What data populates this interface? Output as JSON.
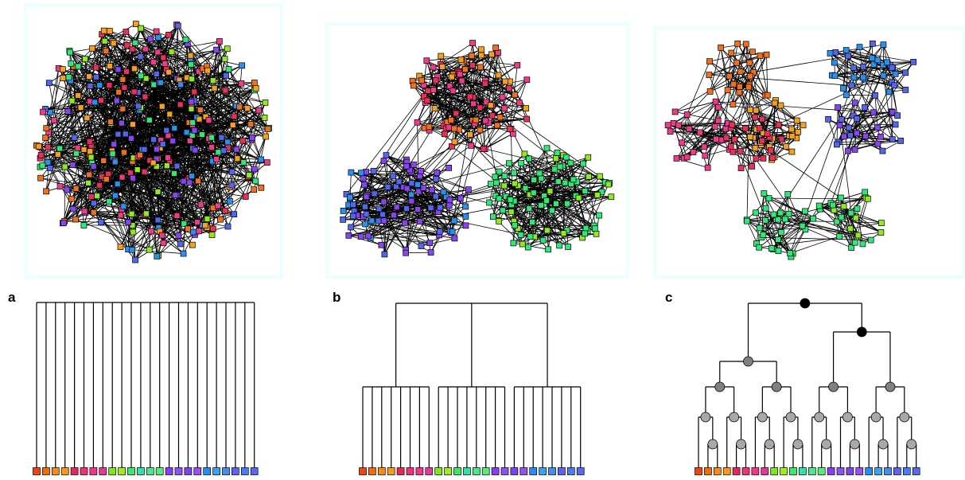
{
  "panels": [
    {
      "label": "a",
      "network": "random-unstructured",
      "tree": "flat"
    },
    {
      "label": "b",
      "network": "three-communities",
      "tree": "one-level"
    },
    {
      "label": "c",
      "network": "hierarchical-communities",
      "tree": "binary-hierarchy"
    }
  ],
  "leaf_colors": [
    "#ee4411",
    "#f26a14",
    "#f38a1a",
    "#f59a1c",
    "#e32a56",
    "#f0307a",
    "#f0368c",
    "#e03a9a",
    "#7ee81e",
    "#a0ec22",
    "#3ee66a",
    "#33e2a0",
    "#4ae88a",
    "#55ec78",
    "#8a3cf0",
    "#8f52f2",
    "#7a44ee",
    "#9650f0",
    "#2a8cf0",
    "#3ea0f2",
    "#468cf0",
    "#6060f2",
    "#4c7cf2",
    "#5a6af0"
  ],
  "edge_color": "#000000",
  "node_colors": {
    "orange": "#f07020",
    "amber": "#f5a020",
    "pink": "#f03a8a",
    "crimson": "#e8305a",
    "green": "#30e878",
    "lime": "#90ea20",
    "violet": "#8844f0",
    "blue": "#2a90f0",
    "indigo": "#5566ee"
  },
  "hierarchy_node_colors": [
    "#000000",
    "#808080",
    "#a8a8a8"
  ]
}
